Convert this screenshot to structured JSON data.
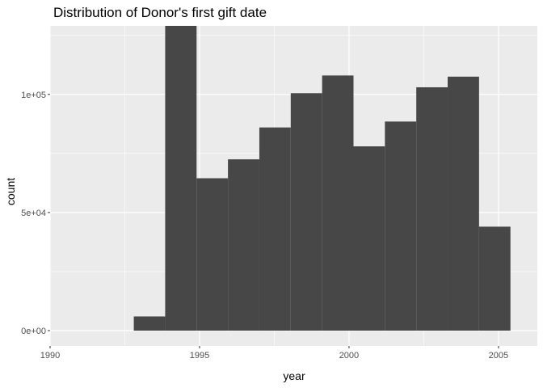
{
  "chart_data": {
    "type": "bar",
    "title": "Distribution of Donor's first gift date",
    "xlabel": "year",
    "ylabel": "count",
    "xlim": [
      1990,
      2006.3
    ],
    "ylim": [
      -6500,
      129000
    ],
    "x_ticks": [
      1990,
      1995,
      2000,
      2005
    ],
    "x_tick_labels": [
      "1990",
      "1995",
      "2000",
      "2005"
    ],
    "y_ticks": [
      0,
      50000,
      100000
    ],
    "y_tick_labels": [
      "0e+00",
      "5e+04",
      "1e+05"
    ],
    "bins": [
      {
        "start": 1992.8,
        "end": 1993.85,
        "count": 6000
      },
      {
        "start": 1993.85,
        "end": 1994.9,
        "count": 129000
      },
      {
        "start": 1994.9,
        "end": 1995.95,
        "count": 64500
      },
      {
        "start": 1995.95,
        "end": 1997.0,
        "count": 72500
      },
      {
        "start": 1997.0,
        "end": 1998.05,
        "count": 86000
      },
      {
        "start": 1998.05,
        "end": 1999.1,
        "count": 100500
      },
      {
        "start": 1999.1,
        "end": 2000.15,
        "count": 108000
      },
      {
        "start": 2000.15,
        "end": 2001.2,
        "count": 78000
      },
      {
        "start": 2001.2,
        "end": 2002.25,
        "count": 88500
      },
      {
        "start": 2002.25,
        "end": 2003.3,
        "count": 103000
      },
      {
        "start": 2003.3,
        "end": 2004.35,
        "count": 107500
      },
      {
        "start": 2004.35,
        "end": 2005.4,
        "count": 44000
      }
    ],
    "grid": true,
    "colors": {
      "panel": "#ebebeb",
      "grid": "#ffffff",
      "bar": "#474747",
      "tick_text": "#4d4d4d"
    }
  }
}
